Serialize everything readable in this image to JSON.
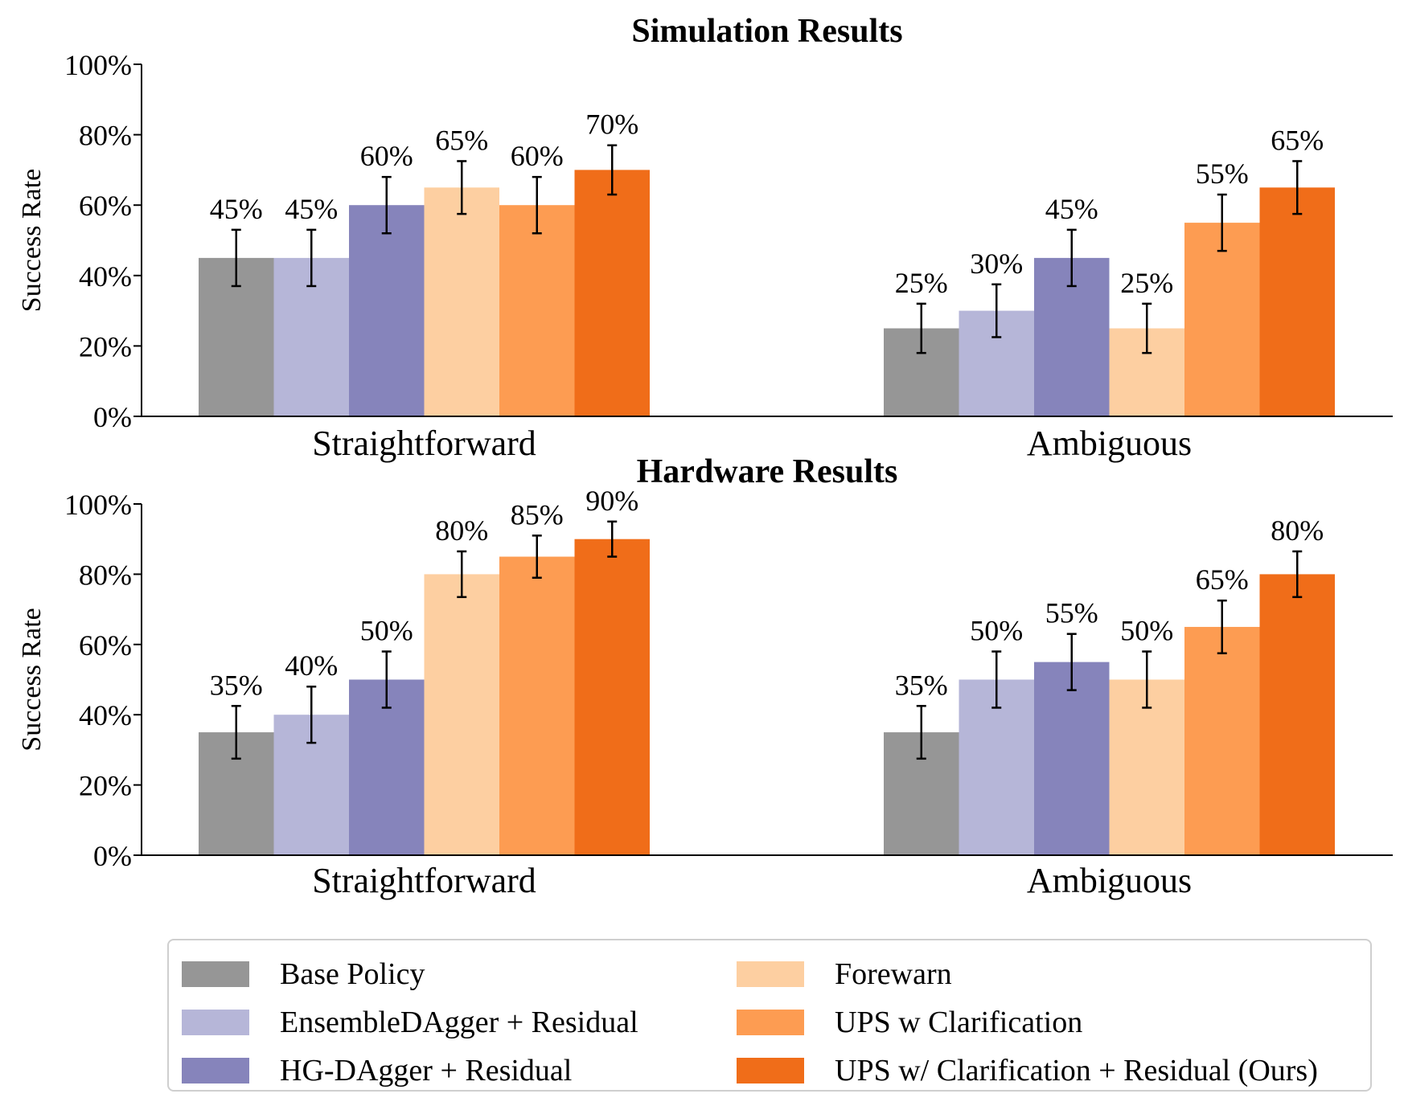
{
  "chart_data": [
    {
      "type": "bar",
      "title": "Simulation Results",
      "ylabel": "Success Rate",
      "xlabel": "",
      "ylim": [
        0,
        100
      ],
      "yticks": [
        "0%",
        "20%",
        "40%",
        "60%",
        "80%",
        "100%"
      ],
      "categories": [
        "Straightforward",
        "Ambiguous"
      ],
      "series": [
        {
          "name": "Base Policy",
          "values": [
            45,
            25
          ],
          "err": [
            8,
            7
          ]
        },
        {
          "name": "EnsembleDAgger + Residual",
          "values": [
            45,
            30
          ],
          "err": [
            8,
            7.5
          ]
        },
        {
          "name": "HG-DAgger + Residual",
          "values": [
            60,
            45
          ],
          "err": [
            8,
            8
          ]
        },
        {
          "name": "Forewarn",
          "values": [
            65,
            25
          ],
          "err": [
            7.5,
            7
          ]
        },
        {
          "name": "UPS w Clarification",
          "values": [
            60,
            55
          ],
          "err": [
            8,
            8
          ]
        },
        {
          "name": "UPS w/ Clarification + Residual (Ours)",
          "values": [
            70,
            65
          ],
          "err": [
            7,
            7.5
          ]
        }
      ],
      "value_labels": [
        [
          "45%",
          "25%"
        ],
        [
          "45%",
          "30%"
        ],
        [
          "60%",
          "45%"
        ],
        [
          "65%",
          "25%"
        ],
        [
          "60%",
          "55%"
        ],
        [
          "70%",
          "65%"
        ]
      ]
    },
    {
      "type": "bar",
      "title": "Hardware Results",
      "ylabel": "Success Rate",
      "xlabel": "",
      "ylim": [
        0,
        100
      ],
      "yticks": [
        "0%",
        "20%",
        "40%",
        "60%",
        "80%",
        "100%"
      ],
      "categories": [
        "Straightforward",
        "Ambiguous"
      ],
      "series": [
        {
          "name": "Base Policy",
          "values": [
            35,
            35
          ],
          "err": [
            7.5,
            7.5
          ]
        },
        {
          "name": "EnsembleDAgger + Residual",
          "values": [
            40,
            50
          ],
          "err": [
            8,
            8
          ]
        },
        {
          "name": "HG-DAgger + Residual",
          "values": [
            50,
            55
          ],
          "err": [
            8,
            8
          ]
        },
        {
          "name": "Forewarn",
          "values": [
            80,
            50
          ],
          "err": [
            6.5,
            8
          ]
        },
        {
          "name": "UPS w Clarification",
          "values": [
            85,
            65
          ],
          "err": [
            6,
            7.5
          ]
        },
        {
          "name": "UPS w/ Clarification + Residual (Ours)",
          "values": [
            90,
            80
          ],
          "err": [
            5,
            6.5
          ]
        }
      ],
      "value_labels": [
        [
          "35%",
          "35%"
        ],
        [
          "40%",
          "50%"
        ],
        [
          "50%",
          "55%"
        ],
        [
          "80%",
          "50%"
        ],
        [
          "85%",
          "65%"
        ],
        [
          "90%",
          "80%"
        ]
      ]
    }
  ],
  "colors": [
    "#969696",
    "#b6b6d8",
    "#8684bb",
    "#fdcfa1",
    "#fd9c52",
    "#f06d19"
  ],
  "legend": {
    "placement": "bottom",
    "items": [
      {
        "label": "Base Policy",
        "color": "#969696"
      },
      {
        "label": "EnsembleDAgger + Residual",
        "color": "#b6b6d8"
      },
      {
        "label": "HG-DAgger + Residual",
        "color": "#8684bb"
      },
      {
        "label": "Forewarn",
        "color": "#fdcfa1"
      },
      {
        "label": "UPS w Clarification",
        "color": "#fd9c52"
      },
      {
        "label": "UPS w/ Clarification + Residual (Ours)",
        "color": "#f06d19"
      }
    ]
  }
}
